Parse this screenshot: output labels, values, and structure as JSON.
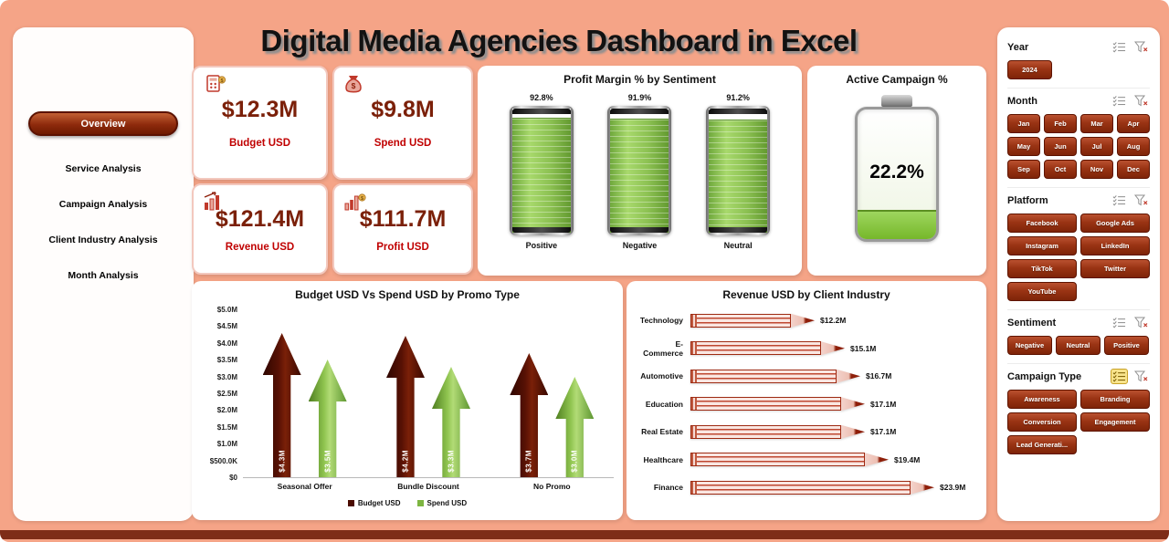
{
  "title": "Digital Media Agencies Dashboard in Excel",
  "sidebar": {
    "items": [
      {
        "label": "Overview",
        "active": true
      },
      {
        "label": "Service Analysis",
        "active": false
      },
      {
        "label": "Campaign Analysis",
        "active": false
      },
      {
        "label": "Client Industry Analysis",
        "active": false
      },
      {
        "label": "Month Analysis",
        "active": false
      }
    ]
  },
  "kpis": [
    {
      "value": "$12.3M",
      "label": "Budget USD",
      "icon": "budget-calculator-icon"
    },
    {
      "value": "$9.8M",
      "label": "Spend USD",
      "icon": "money-bag-icon"
    },
    {
      "value": "$121.4M",
      "label": "Revenue USD",
      "icon": "revenue-bars-icon"
    },
    {
      "value": "$111.7M",
      "label": "Profit USD",
      "icon": "profit-chart-icon"
    }
  ],
  "chart_data": [
    {
      "id": "profit_margin_by_sentiment",
      "type": "bar",
      "style": "battery-gauge",
      "title": "Profit Margin % by Sentiment",
      "categories": [
        "Positive",
        "Negative",
        "Neutral"
      ],
      "values": [
        92.8,
        91.9,
        91.2
      ],
      "value_labels": [
        "92.8%",
        "91.9%",
        "91.2%"
      ],
      "ylim": [
        0,
        100
      ]
    },
    {
      "id": "active_campaign_pct",
      "type": "gauge",
      "style": "battery-fill",
      "title": "Active Campaign %",
      "value": 22.2,
      "value_label": "22.2%",
      "ylim": [
        0,
        100
      ]
    },
    {
      "id": "budget_vs_spend_by_promo_type",
      "type": "bar",
      "style": "arrow-bars",
      "title": "Budget USD Vs Spend USD by Promo Type",
      "categories": [
        "Seasonal Offer",
        "Bundle Discount",
        "No Promo"
      ],
      "series": [
        {
          "name": "Budget USD",
          "values": [
            4300000,
            4200000,
            3700000
          ],
          "value_labels": [
            "$4.3M",
            "$4.2M",
            "$3.7M"
          ],
          "color": "#4A0B00"
        },
        {
          "name": "Spend USD",
          "values": [
            3500000,
            3300000,
            3000000
          ],
          "value_labels": [
            "$3.5M",
            "$3.3M",
            "$3.0M"
          ],
          "color": "#7DB541"
        }
      ],
      "y_ticks": [
        "$5.0M",
        "$4.5M",
        "$4.0M",
        "$3.5M",
        "$3.0M",
        "$2.5M",
        "$2.0M",
        "$1.5M",
        "$1.0M",
        "$500.0K",
        "$0"
      ],
      "ylim": [
        0,
        5000000
      ],
      "legend_position": "bottom"
    },
    {
      "id": "revenue_by_client_industry",
      "type": "bar",
      "style": "pencil-bars",
      "title": "Revenue USD by Client Industry",
      "categories": [
        "Technology",
        "E-Commerce",
        "Automotive",
        "Education",
        "Real Estate",
        "Healthcare",
        "Finance"
      ],
      "values": [
        12200000,
        15100000,
        16700000,
        17100000,
        17100000,
        19400000,
        23900000
      ],
      "value_labels": [
        "$12.2M",
        "$15.1M",
        "$16.7M",
        "$17.1M",
        "$17.1M",
        "$19.4M",
        "$23.9M"
      ],
      "xlim": [
        0,
        24000000
      ]
    }
  ],
  "slicers": [
    {
      "name": "Year",
      "options": [
        "2024"
      ],
      "icons": [
        "multi-select-icon",
        "clear-filter-icon"
      ],
      "multi_select_active": false
    },
    {
      "name": "Month",
      "options": [
        "Jan",
        "Feb",
        "Mar",
        "Apr",
        "May",
        "Jun",
        "Jul",
        "Aug",
        "Sep",
        "Oct",
        "Nov",
        "Dec"
      ],
      "icons": [
        "multi-select-icon",
        "clear-filter-icon"
      ],
      "multi_select_active": false
    },
    {
      "name": "Platform",
      "options": [
        "Facebook",
        "Google Ads",
        "Instagram",
        "LinkedIn",
        "TikTok",
        "Twitter",
        "YouTube"
      ],
      "icons": [
        "multi-select-icon",
        "clear-filter-icon"
      ],
      "multi_select_active": false
    },
    {
      "name": "Sentiment",
      "options": [
        "Negative",
        "Neutral",
        "Positive"
      ],
      "icons": [
        "multi-select-icon",
        "clear-filter-icon"
      ],
      "multi_select_active": false
    },
    {
      "name": "Campaign Type",
      "options": [
        "Awareness",
        "Branding",
        "Conversion",
        "Engagement",
        "Lead Generati..."
      ],
      "icons": [
        "multi-select-icon",
        "clear-filter-icon"
      ],
      "multi_select_active": true
    }
  ],
  "colors": {
    "background": "#F5A487",
    "bottom_strip": "#7E2D18",
    "panel": "#FFFFFF",
    "nav_active": "#8E2A0C",
    "slicer_button": "#9A3414",
    "kpi_value": "#7B2009",
    "kpi_label": "#C00000",
    "budget_arrow": "#4A0B00",
    "spend_arrow": "#7DB541",
    "battery_fill": "#8CC152",
    "pencil_red": "#9E2B13"
  }
}
